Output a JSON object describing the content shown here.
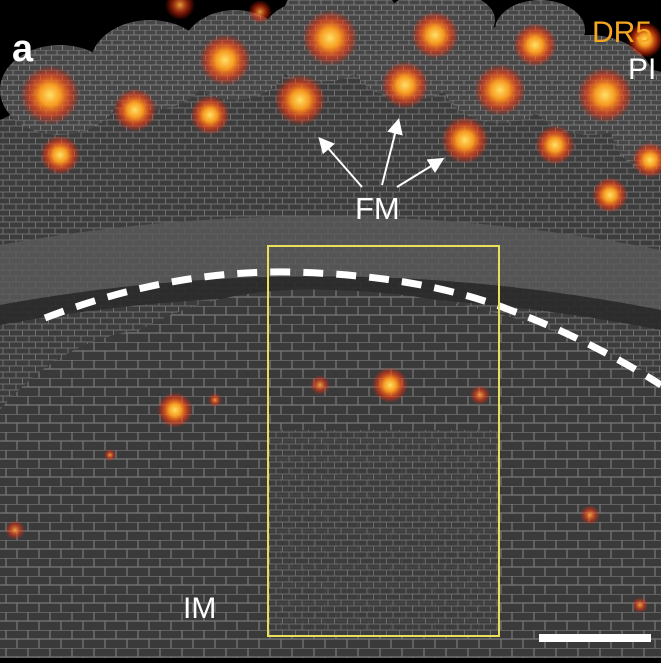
{
  "panel_label": "a",
  "legend": {
    "dr5": "DR5",
    "pi": "PI",
    "dr5_color": "#f5a623",
    "pi_color": "#ffffff"
  },
  "annotations": {
    "floral_meristem": "FM",
    "inflorescence_meristem": "IM"
  },
  "colors": {
    "background": "#000000",
    "tissue": "#3a3a3a",
    "cell_walls": "#a8a8a8",
    "signal_core": "#ffe066",
    "signal_halo": "#ff3a10",
    "highlight_box": "#e8e05a",
    "scale_bar": "#ffffff",
    "dashed_line": "#ffffff"
  }
}
